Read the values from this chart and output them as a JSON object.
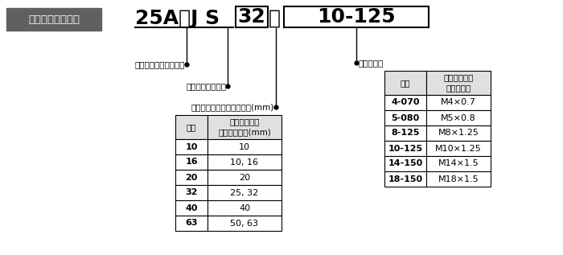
{
  "background_color": "#ffffff",
  "badge_text": "ステンレスタイプ",
  "badge_bg": "#606060",
  "badge_fg": "#ffffff",
  "label1": "二次電池対応シリーズ",
  "label2": "ステンレスタイプ",
  "label3": "適用シリンダチューブ内径(mm)",
  "label4": "ねじの呼び",
  "left_table_header": [
    "記号",
    "適用シリンダ\nチューブ内径(mm)"
  ],
  "left_table_rows": [
    [
      "10",
      "10"
    ],
    [
      "16",
      "10, 16"
    ],
    [
      "20",
      "20"
    ],
    [
      "32",
      "25, 32"
    ],
    [
      "40",
      "40"
    ],
    [
      "63",
      "50, 63"
    ]
  ],
  "right_table_header": [
    "記号",
    "適用シリンダ\nねじの呼び"
  ],
  "right_table_rows": [
    [
      "4-070",
      "M4×0.7"
    ],
    [
      "5-080",
      "M5×0.8"
    ],
    [
      "8-125",
      "M8×1.25"
    ],
    [
      "10-125",
      "M10×1.25"
    ],
    [
      "14-150",
      "M14×1.5"
    ],
    [
      "18-150",
      "M18×1.5"
    ]
  ]
}
